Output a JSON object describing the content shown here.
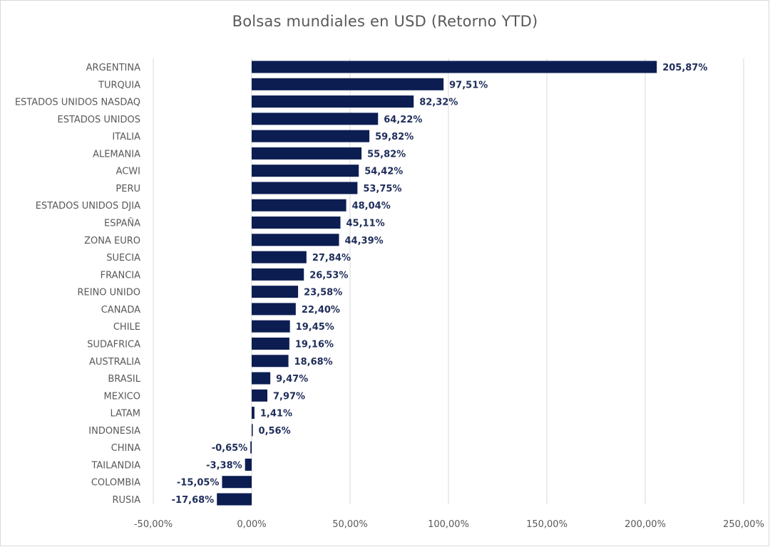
{
  "colors": {
    "bar": "#0c1d52",
    "data_label": "#1f2d5a",
    "axis_text": "#595959",
    "gridline": "#d9d9d9"
  },
  "chart_data": {
    "type": "bar",
    "orientation": "horizontal",
    "title": "Bolsas mundiales en USD (Retorno YTD)",
    "xlabel": "",
    "ylabel": "",
    "grid": true,
    "legend": "none",
    "xlim": [
      -50,
      250
    ],
    "x_ticks": [
      -50,
      0,
      50,
      100,
      150,
      200,
      250
    ],
    "x_tick_labels": [
      "-50,00%",
      "0,00%",
      "50,00%",
      "100,00%",
      "150,00%",
      "200,00%",
      "250,00%"
    ],
    "categories": [
      "ARGENTINA",
      "TURQUIA",
      "ESTADOS UNIDOS NASDAQ",
      "ESTADOS UNIDOS",
      "ITALIA",
      "ALEMANIA",
      "ACWI",
      "PERU",
      "ESTADOS UNIDOS DJIA",
      "ESPAÑA",
      "ZONA EURO",
      "SUECIA",
      "FRANCIA",
      "REINO UNIDO",
      "CANADA",
      "CHILE",
      "SUDAFRICA",
      "AUSTRALIA",
      "BRASIL",
      "MEXICO",
      "LATAM",
      "INDONESIA",
      "CHINA",
      "TAILANDIA",
      "COLOMBIA",
      "RUSIA"
    ],
    "values": [
      205.87,
      97.51,
      82.32,
      64.22,
      59.82,
      55.82,
      54.42,
      53.75,
      48.04,
      45.11,
      44.39,
      27.84,
      26.53,
      23.58,
      22.4,
      19.45,
      19.16,
      18.68,
      9.47,
      7.97,
      1.41,
      0.56,
      -0.65,
      -3.38,
      -15.05,
      -17.68
    ],
    "value_labels": [
      "205,87%",
      "97,51%",
      "82,32%",
      "64,22%",
      "59,82%",
      "55,82%",
      "54,42%",
      "53,75%",
      "48,04%",
      "45,11%",
      "44,39%",
      "27,84%",
      "26,53%",
      "23,58%",
      "22,40%",
      "19,45%",
      "19,16%",
      "18,68%",
      "9,47%",
      "7,97%",
      "1,41%",
      "0,56%",
      "-0,65%",
      "-3,38%",
      "-15,05%",
      "-17,68%"
    ]
  }
}
